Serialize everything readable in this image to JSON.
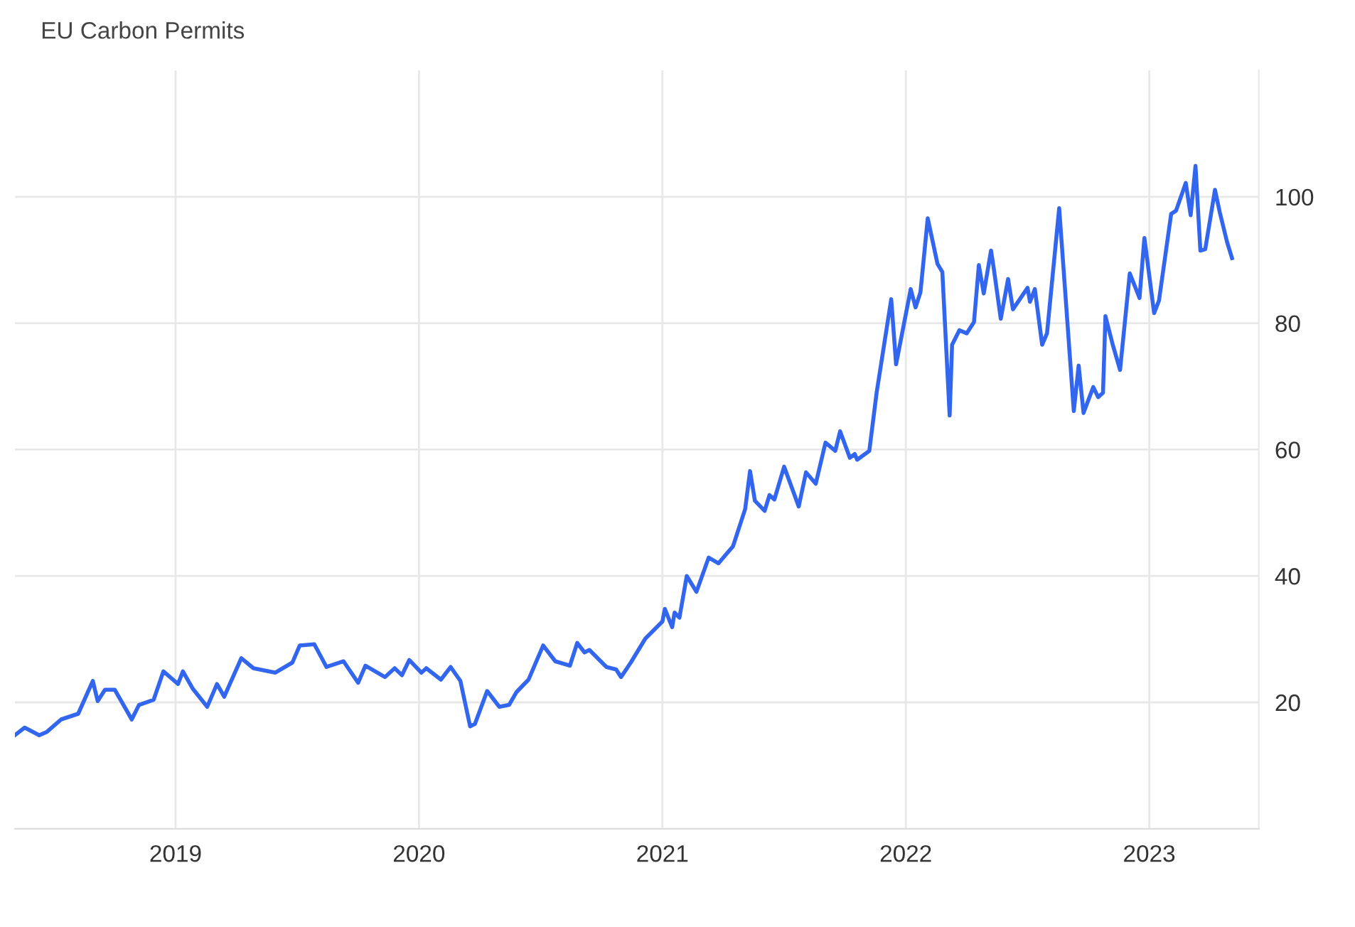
{
  "chart_data": {
    "type": "line",
    "title": "EU Carbon Permits",
    "x": [
      2018.34,
      2018.38,
      2018.44,
      2018.47,
      2018.53,
      2018.6,
      2018.66,
      2018.68,
      2018.71,
      2018.75,
      2018.82,
      2018.85,
      2018.91,
      2018.95,
      2019.01,
      2019.03,
      2019.07,
      2019.13,
      2019.17,
      2019.2,
      2019.27,
      2019.32,
      2019.41,
      2019.48,
      2019.51,
      2019.57,
      2019.62,
      2019.69,
      2019.75,
      2019.78,
      2019.86,
      2019.9,
      2019.93,
      2019.96,
      2020.01,
      2020.03,
      2020.09,
      2020.13,
      2020.17,
      2020.21,
      2020.23,
      2020.28,
      2020.33,
      2020.37,
      2020.4,
      2020.45,
      2020.51,
      2020.56,
      2020.62,
      2020.65,
      2020.68,
      2020.7,
      2020.77,
      2020.81,
      2020.83,
      2020.87,
      2020.93,
      2021.0,
      2021.01,
      2021.04,
      2021.05,
      2021.07,
      2021.1,
      2021.14,
      2021.19,
      2021.23,
      2021.29,
      2021.34,
      2021.36,
      2021.38,
      2021.42,
      2021.44,
      2021.46,
      2021.5,
      2021.56,
      2021.59,
      2021.63,
      2021.67,
      2021.71,
      2021.73,
      2021.77,
      2021.79,
      2021.8,
      2021.85,
      2021.88,
      2021.94,
      2021.96,
      2022.02,
      2022.04,
      2022.06,
      2022.09,
      2022.13,
      2022.15,
      2022.18,
      2022.19,
      2022.22,
      2022.25,
      2022.28,
      2022.3,
      2022.32,
      2022.35,
      2022.36,
      2022.39,
      2022.42,
      2022.44,
      2022.5,
      2022.51,
      2022.53,
      2022.56,
      2022.58,
      2022.63,
      2022.69,
      2022.71,
      2022.73,
      2022.77,
      2022.79,
      2022.81,
      2022.82,
      2022.85,
      2022.88,
      2022.92,
      2022.96,
      2022.98,
      2023.02,
      2023.04,
      2023.09,
      2023.11,
      2023.14,
      2023.15,
      2023.17,
      2023.19,
      2023.21,
      2023.23,
      2023.27,
      2023.29,
      2023.32,
      2023.34
    ],
    "series": [
      {
        "color": "#3366ee",
        "values": [
          14.8,
          16.0,
          14.8,
          15.3,
          17.3,
          18.2,
          23.4,
          20.2,
          22.0,
          22.0,
          17.3,
          19.6,
          20.4,
          24.9,
          22.9,
          24.9,
          22.2,
          19.3,
          22.9,
          20.9,
          27.0,
          25.4,
          24.7,
          26.3,
          29.0,
          29.2,
          25.6,
          26.5,
          23.1,
          25.8,
          24.0,
          25.4,
          24.3,
          26.7,
          24.7,
          25.4,
          23.6,
          25.6,
          23.4,
          16.2,
          16.6,
          21.8,
          19.3,
          19.6,
          21.6,
          23.6,
          29.0,
          26.5,
          25.8,
          29.4,
          27.9,
          28.3,
          25.6,
          25.2,
          24.0,
          26.3,
          30.1,
          32.8,
          34.8,
          31.9,
          34.2,
          33.4,
          40.0,
          37.5,
          42.9,
          42.0,
          44.7,
          50.6,
          56.6,
          51.9,
          50.3,
          52.8,
          52.1,
          57.3,
          51.0,
          56.4,
          54.6,
          61.1,
          59.8,
          62.9,
          58.7,
          59.3,
          58.4,
          59.8,
          69.0,
          83.8,
          73.5,
          85.4,
          82.5,
          84.9,
          96.6,
          89.4,
          88.1,
          65.4,
          76.6,
          78.9,
          78.4,
          80.2,
          89.2,
          84.7,
          91.5,
          89.0,
          80.7,
          87.0,
          82.2,
          85.6,
          83.4,
          85.4,
          76.6,
          78.4,
          98.2,
          66.1,
          73.3,
          65.8,
          69.9,
          68.3,
          69.0,
          81.1,
          76.6,
          72.6,
          87.9,
          84.0,
          93.5,
          81.6,
          83.6,
          97.3,
          97.8,
          101.1,
          102.2,
          97.1,
          104.9,
          91.5,
          91.7,
          101.1,
          97.5,
          92.8,
          90.3
        ]
      }
    ],
    "xlim": [
      2018.34,
      2023.45
    ],
    "xticks": [
      2019,
      2020,
      2021,
      2022,
      2023
    ],
    "ylim": [
      0,
      120
    ],
    "yticks": [
      20,
      40,
      60,
      80,
      100
    ],
    "grid": true,
    "legend": false
  }
}
